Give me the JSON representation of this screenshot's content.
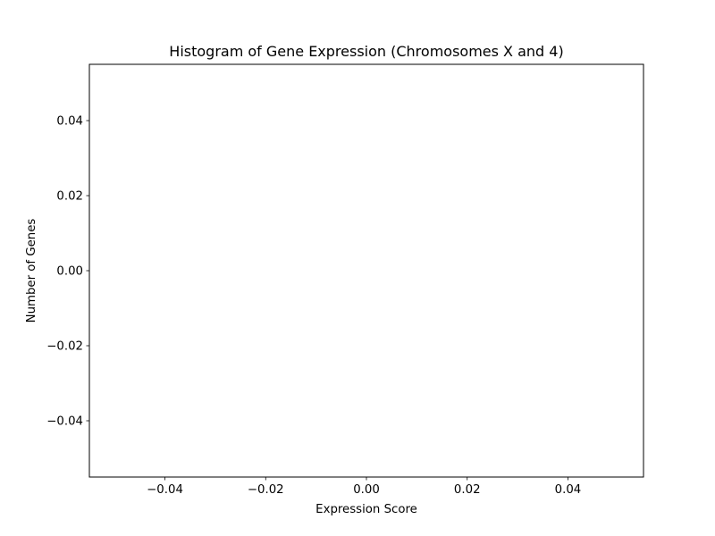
{
  "chart_data": {
    "type": "bar",
    "title": "Histogram of Gene Expression (Chromosomes X and 4)",
    "xlabel": "Expression Score",
    "ylabel": "Number of Genes",
    "categories": [],
    "values": [],
    "xlim": [
      -0.055,
      0.055
    ],
    "ylim": [
      -0.055,
      0.055
    ],
    "x_ticks": [
      -0.04,
      -0.02,
      0.0,
      0.02,
      0.04
    ],
    "x_tick_labels": [
      "−0.04",
      "−0.02",
      "0.00",
      "0.02",
      "0.04"
    ],
    "y_ticks": [
      -0.04,
      -0.02,
      0.0,
      0.02,
      0.04
    ],
    "y_tick_labels": [
      "−0.04",
      "−0.02",
      "0.00",
      "0.02",
      "0.04"
    ],
    "grid": false,
    "legend": "none"
  }
}
